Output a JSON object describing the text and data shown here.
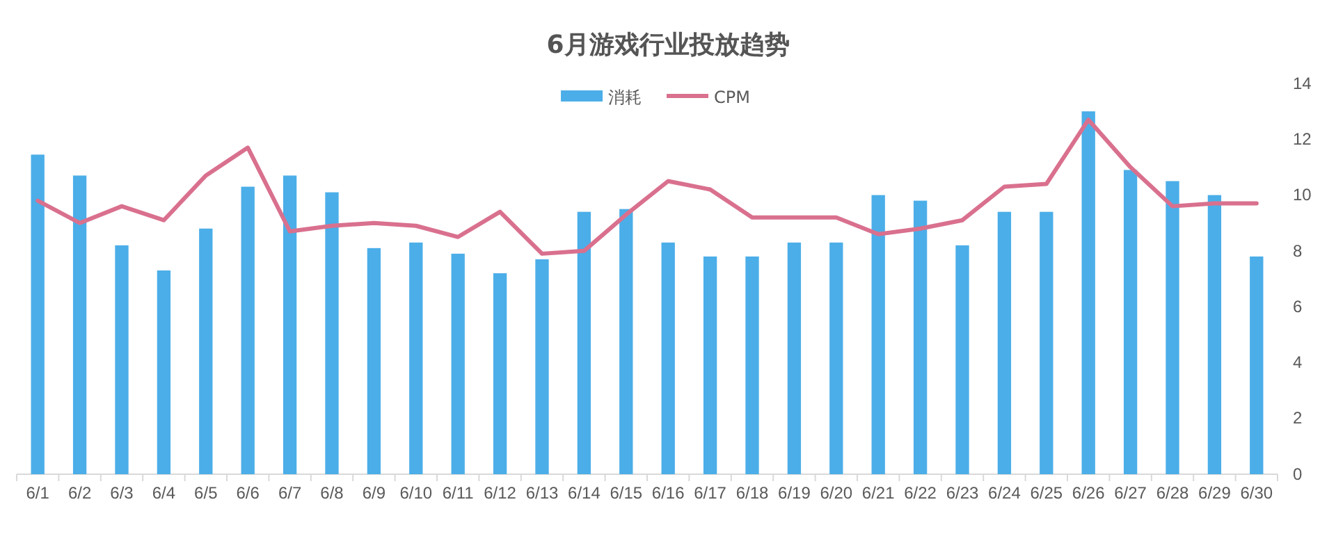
{
  "chart_data": {
    "type": "bar",
    "title": "6月游戏行业投放趋势",
    "categories": [
      "6/1",
      "6/2",
      "6/3",
      "6/4",
      "6/5",
      "6/6",
      "6/7",
      "6/8",
      "6/9",
      "6/10",
      "6/11",
      "6/12",
      "6/13",
      "6/14",
      "6/15",
      "6/16",
      "6/17",
      "6/18",
      "6/19",
      "6/20",
      "6/21",
      "6/22",
      "6/23",
      "6/24",
      "6/25",
      "6/26",
      "6/27",
      "6/28",
      "6/29",
      "6/30"
    ],
    "series": [
      {
        "name": "消耗",
        "color": "#4baee8",
        "values": [
          11.45,
          10.7,
          8.2,
          7.3,
          8.8,
          10.3,
          10.7,
          10.1,
          8.1,
          8.3,
          7.9,
          7.2,
          7.7,
          9.4,
          9.5,
          8.3,
          7.8,
          7.8,
          8.3,
          8.3,
          10.0,
          9.8,
          8.2,
          9.4,
          9.4,
          13.0,
          10.9,
          10.5,
          10.0,
          7.8
        ]
      },
      {
        "name": "CPM",
        "type": "line",
        "color": "#d9708e",
        "values": [
          9.8,
          9.0,
          9.6,
          9.1,
          10.7,
          11.7,
          8.7,
          8.9,
          9.0,
          8.9,
          8.5,
          9.4,
          7.9,
          8.0,
          9.3,
          10.5,
          10.2,
          9.2,
          9.2,
          9.2,
          8.6,
          8.8,
          9.1,
          10.3,
          10.4,
          12.7,
          11.0,
          9.6,
          9.7,
          9.7
        ]
      }
    ],
    "ylim": [
      0,
      14
    ],
    "yticks": [
      0,
      2,
      4,
      6,
      8,
      10,
      12,
      14
    ],
    "legend": "top",
    "marker": "none",
    "line_style": "solid"
  }
}
